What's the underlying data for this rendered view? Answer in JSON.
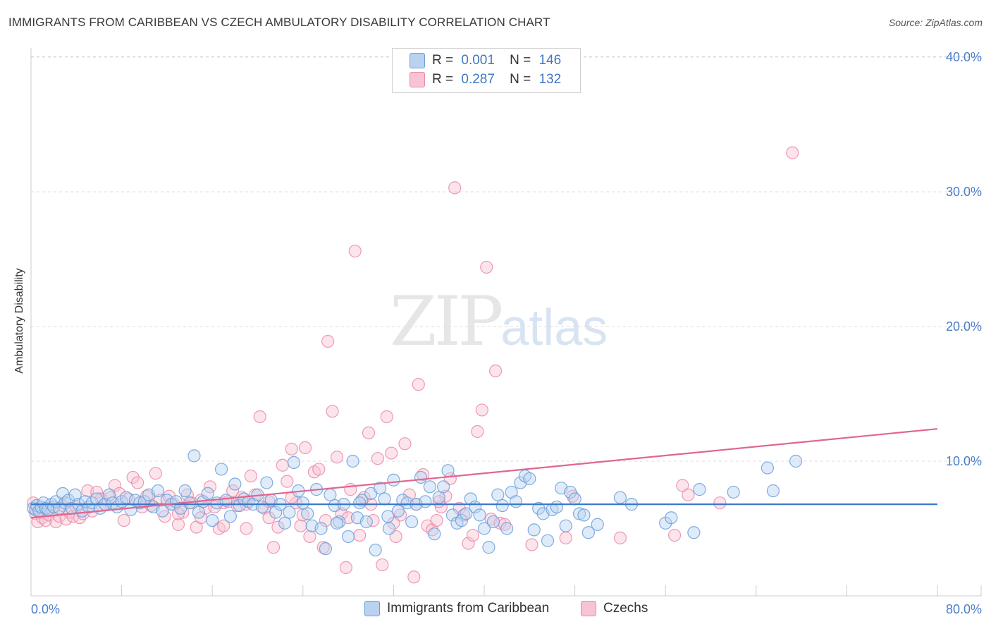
{
  "title": "IMMIGRANTS FROM CARIBBEAN VS CZECH AMBULATORY DISABILITY CORRELATION CHART",
  "source": "Source: ZipAtlas.com",
  "watermark": {
    "zip": "ZIP",
    "atlas": "atlas"
  },
  "legend": {
    "r_label": "R =",
    "n_label": "N =",
    "series": [
      {
        "r": "0.001",
        "n": "146"
      },
      {
        "r": "0.287",
        "n": "132"
      }
    ]
  },
  "colors": {
    "caribbean_fill": "#b9d2f0",
    "caribbean_stroke": "#6a9fdc",
    "caribbean_line": "#3b78c9",
    "czech_fill": "#f8c3d3",
    "czech_stroke": "#ea8aa9",
    "czech_line": "#e06690",
    "tick": "#4a7ec9",
    "grid": "#dddddd"
  },
  "chart_data": {
    "type": "scatter",
    "title": "IMMIGRANTS FROM CARIBBEAN VS CZECH AMBULATORY DISABILITY CORRELATION CHART",
    "xlabel": "",
    "ylabel": "Ambulatory Disability",
    "xlim": [
      0,
      80
    ],
    "ylim": [
      0,
      40
    ],
    "x_tick_labels": [
      "0.0%",
      "80.0%"
    ],
    "y_tick_labels": [
      "10.0%",
      "20.0%",
      "30.0%",
      "40.0%"
    ],
    "y_ticks": [
      10,
      20,
      30,
      40
    ],
    "x_minor_ticks": [
      0,
      8,
      16,
      24,
      32,
      40,
      48,
      56,
      64,
      72,
      80
    ],
    "legend_position": "bottom-center",
    "series": [
      {
        "name": "Immigrants from Caribbean",
        "trend": [
          [
            0,
            6.8
          ],
          [
            80,
            6.8
          ]
        ],
        "points": [
          [
            0.2,
            6.5
          ],
          [
            0.4,
            6.4
          ],
          [
            0.5,
            6.7
          ],
          [
            0.7,
            6.3
          ],
          [
            0.9,
            6.6
          ],
          [
            1.1,
            6.9
          ],
          [
            1.3,
            6.5
          ],
          [
            1.5,
            6.4
          ],
          [
            1.8,
            6.8
          ],
          [
            2.0,
            6.6
          ],
          [
            2.2,
            7.0
          ],
          [
            2.5,
            6.5
          ],
          [
            2.8,
            7.6
          ],
          [
            3.0,
            6.9
          ],
          [
            3.3,
            7.1
          ],
          [
            3.6,
            6.5
          ],
          [
            3.9,
            7.5
          ],
          [
            4.2,
            6.8
          ],
          [
            4.5,
            6.3
          ],
          [
            4.8,
            7.0
          ],
          [
            5.1,
            6.6
          ],
          [
            5.4,
            6.9
          ],
          [
            5.8,
            7.2
          ],
          [
            6.1,
            6.5
          ],
          [
            6.5,
            6.8
          ],
          [
            6.9,
            7.5
          ],
          [
            7.2,
            6.9
          ],
          [
            7.6,
            6.6
          ],
          [
            8.0,
            7.0
          ],
          [
            8.4,
            7.3
          ],
          [
            8.8,
            6.4
          ],
          [
            9.2,
            7.1
          ],
          [
            9.6,
            6.9
          ],
          [
            10.0,
            7.0
          ],
          [
            10.4,
            7.5
          ],
          [
            10.8,
            6.6
          ],
          [
            11.2,
            7.8
          ],
          [
            11.6,
            6.3
          ],
          [
            12.0,
            7.1
          ],
          [
            12.4,
            6.8
          ],
          [
            12.8,
            7.0
          ],
          [
            13.2,
            6.5
          ],
          [
            13.6,
            7.8
          ],
          [
            14.0,
            6.9
          ],
          [
            14.4,
            10.4
          ],
          [
            14.8,
            6.2
          ],
          [
            15.2,
            7.0
          ],
          [
            15.6,
            7.6
          ],
          [
            16.0,
            5.6
          ],
          [
            16.4,
            6.9
          ],
          [
            16.8,
            9.4
          ],
          [
            17.2,
            7.1
          ],
          [
            17.6,
            5.9
          ],
          [
            18.0,
            8.3
          ],
          [
            18.4,
            6.7
          ],
          [
            18.8,
            7.2
          ],
          [
            19.2,
            7.0
          ],
          [
            19.6,
            6.8
          ],
          [
            20.0,
            7.5
          ],
          [
            20.4,
            6.6
          ],
          [
            20.8,
            8.4
          ],
          [
            21.2,
            7.1
          ],
          [
            21.6,
            6.2
          ],
          [
            22.0,
            6.8
          ],
          [
            22.4,
            5.4
          ],
          [
            22.8,
            6.2
          ],
          [
            23.2,
            9.9
          ],
          [
            23.6,
            7.8
          ],
          [
            24.0,
            6.9
          ],
          [
            24.4,
            6.1
          ],
          [
            24.8,
            5.2
          ],
          [
            25.2,
            7.9
          ],
          [
            25.6,
            5.0
          ],
          [
            26.0,
            3.5
          ],
          [
            26.4,
            7.5
          ],
          [
            26.8,
            6.7
          ],
          [
            27.2,
            5.5
          ],
          [
            27.6,
            6.8
          ],
          [
            28.0,
            4.4
          ],
          [
            28.4,
            10.0
          ],
          [
            28.8,
            5.8
          ],
          [
            29.2,
            7.1
          ],
          [
            29.6,
            5.5
          ],
          [
            30.0,
            7.6
          ],
          [
            30.4,
            3.4
          ],
          [
            30.8,
            8.0
          ],
          [
            31.2,
            7.2
          ],
          [
            31.6,
            5.0
          ],
          [
            32.0,
            8.6
          ],
          [
            32.4,
            6.3
          ],
          [
            32.8,
            7.1
          ],
          [
            33.2,
            6.9
          ],
          [
            33.6,
            5.5
          ],
          [
            34.0,
            6.8
          ],
          [
            34.4,
            8.8
          ],
          [
            34.8,
            7.0
          ],
          [
            35.2,
            8.1
          ],
          [
            35.6,
            4.6
          ],
          [
            36.0,
            7.3
          ],
          [
            36.4,
            8.1
          ],
          [
            36.8,
            9.3
          ],
          [
            37.2,
            6.0
          ],
          [
            37.6,
            5.4
          ],
          [
            38.0,
            5.6
          ],
          [
            38.4,
            6.1
          ],
          [
            38.8,
            7.2
          ],
          [
            39.2,
            6.6
          ],
          [
            39.6,
            6.0
          ],
          [
            40.0,
            5.0
          ],
          [
            40.4,
            3.6
          ],
          [
            40.8,
            5.5
          ],
          [
            41.2,
            7.5
          ],
          [
            41.6,
            6.7
          ],
          [
            42.0,
            5.0
          ],
          [
            42.4,
            7.7
          ],
          [
            42.8,
            7.0
          ],
          [
            43.2,
            8.4
          ],
          [
            43.6,
            8.9
          ],
          [
            44.0,
            8.7
          ],
          [
            44.4,
            4.9
          ],
          [
            44.8,
            6.5
          ],
          [
            45.2,
            6.1
          ],
          [
            45.6,
            4.1
          ],
          [
            46.0,
            6.4
          ],
          [
            46.4,
            6.6
          ],
          [
            46.8,
            8.0
          ],
          [
            47.2,
            5.2
          ],
          [
            47.6,
            7.7
          ],
          [
            48.0,
            7.2
          ],
          [
            48.4,
            6.1
          ],
          [
            48.8,
            6.0
          ],
          [
            49.2,
            4.7
          ],
          [
            50.0,
            5.3
          ],
          [
            52.0,
            7.3
          ],
          [
            53.0,
            6.8
          ],
          [
            56.0,
            5.4
          ],
          [
            56.5,
            5.8
          ],
          [
            58.5,
            4.7
          ],
          [
            59.0,
            7.9
          ],
          [
            62.0,
            7.7
          ],
          [
            65.0,
            9.5
          ],
          [
            65.5,
            7.8
          ],
          [
            67.5,
            10.0
          ],
          [
            29.0,
            6.9
          ],
          [
            31.5,
            5.9
          ],
          [
            27.0,
            5.4
          ]
        ]
      },
      {
        "name": "Czechs",
        "trend": [
          [
            0,
            5.8
          ],
          [
            80,
            12.4
          ]
        ],
        "points": [
          [
            0.2,
            6.9
          ],
          [
            0.4,
            6.1
          ],
          [
            0.6,
            5.5
          ],
          [
            0.8,
            6.2
          ],
          [
            1.0,
            5.8
          ],
          [
            1.3,
            5.6
          ],
          [
            1.6,
            6.0
          ],
          [
            1.9,
            6.4
          ],
          [
            2.2,
            5.5
          ],
          [
            2.5,
            5.9
          ],
          [
            2.8,
            6.7
          ],
          [
            3.1,
            5.7
          ],
          [
            3.4,
            6.2
          ],
          [
            3.7,
            5.9
          ],
          [
            4.0,
            6.6
          ],
          [
            4.3,
            5.8
          ],
          [
            4.6,
            6.1
          ],
          [
            5.0,
            7.8
          ],
          [
            5.4,
            6.3
          ],
          [
            5.8,
            7.7
          ],
          [
            6.2,
            7.2
          ],
          [
            6.6,
            6.8
          ],
          [
            7.0,
            7.3
          ],
          [
            7.4,
            8.2
          ],
          [
            7.8,
            7.6
          ],
          [
            8.2,
            5.6
          ],
          [
            8.6,
            7.2
          ],
          [
            9.0,
            8.8
          ],
          [
            9.4,
            8.4
          ],
          [
            9.8,
            6.6
          ],
          [
            10.2,
            7.4
          ],
          [
            10.6,
            6.7
          ],
          [
            11.0,
            9.1
          ],
          [
            11.4,
            7.1
          ],
          [
            11.8,
            5.9
          ],
          [
            12.2,
            7.4
          ],
          [
            12.6,
            6.8
          ],
          [
            13.0,
            5.3
          ],
          [
            13.4,
            6.2
          ],
          [
            13.8,
            7.5
          ],
          [
            14.2,
            6.9
          ],
          [
            14.6,
            5.1
          ],
          [
            15.0,
            7.1
          ],
          [
            15.4,
            6.5
          ],
          [
            15.8,
            8.1
          ],
          [
            16.2,
            6.6
          ],
          [
            16.6,
            5.0
          ],
          [
            17.0,
            6.9
          ],
          [
            17.4,
            7.0
          ],
          [
            17.8,
            7.8
          ],
          [
            18.2,
            6.7
          ],
          [
            18.6,
            7.3
          ],
          [
            19.0,
            6.8
          ],
          [
            19.4,
            8.9
          ],
          [
            19.8,
            7.5
          ],
          [
            20.2,
            13.3
          ],
          [
            20.6,
            6.5
          ],
          [
            21.0,
            5.8
          ],
          [
            21.4,
            3.6
          ],
          [
            21.8,
            5.1
          ],
          [
            22.2,
            9.7
          ],
          [
            22.6,
            8.5
          ],
          [
            23.0,
            10.9
          ],
          [
            23.4,
            6.9
          ],
          [
            23.8,
            5.2
          ],
          [
            24.2,
            11.0
          ],
          [
            24.6,
            4.4
          ],
          [
            25.0,
            9.2
          ],
          [
            25.4,
            9.4
          ],
          [
            25.8,
            3.6
          ],
          [
            26.2,
            18.9
          ],
          [
            26.6,
            13.7
          ],
          [
            27.0,
            10.3
          ],
          [
            27.4,
            6.1
          ],
          [
            27.8,
            2.1
          ],
          [
            28.2,
            7.9
          ],
          [
            28.6,
            25.6
          ],
          [
            29.0,
            4.5
          ],
          [
            29.4,
            7.3
          ],
          [
            29.8,
            12.1
          ],
          [
            30.2,
            5.6
          ],
          [
            30.6,
            10.2
          ],
          [
            31.0,
            2.3
          ],
          [
            31.4,
            13.3
          ],
          [
            31.8,
            10.6
          ],
          [
            32.2,
            4.4
          ],
          [
            32.6,
            6.0
          ],
          [
            33.0,
            11.3
          ],
          [
            33.4,
            7.5
          ],
          [
            33.8,
            1.4
          ],
          [
            34.2,
            15.7
          ],
          [
            34.6,
            9.0
          ],
          [
            35.0,
            5.2
          ],
          [
            35.4,
            4.9
          ],
          [
            35.8,
            5.6
          ],
          [
            36.2,
            6.6
          ],
          [
            36.6,
            7.4
          ],
          [
            37.0,
            8.7
          ],
          [
            37.4,
            30.3
          ],
          [
            37.8,
            6.5
          ],
          [
            38.2,
            6.0
          ],
          [
            38.6,
            3.9
          ],
          [
            39.0,
            4.5
          ],
          [
            39.4,
            12.2
          ],
          [
            39.8,
            13.8
          ],
          [
            40.2,
            24.4
          ],
          [
            40.6,
            5.7
          ],
          [
            41.0,
            16.7
          ],
          [
            41.4,
            5.4
          ],
          [
            41.8,
            5.3
          ],
          [
            44.2,
            3.8
          ],
          [
            47.2,
            4.3
          ],
          [
            47.8,
            7.4
          ],
          [
            52.0,
            4.3
          ],
          [
            56.8,
            4.5
          ],
          [
            57.5,
            8.2
          ],
          [
            58.0,
            7.5
          ],
          [
            60.8,
            6.9
          ],
          [
            67.2,
            32.9
          ],
          [
            24.0,
            6.0
          ],
          [
            26.0,
            5.6
          ],
          [
            28.0,
            5.8
          ],
          [
            30.0,
            6.8
          ],
          [
            32.0,
            5.4
          ],
          [
            34.0,
            6.8
          ],
          [
            36.0,
            7.0
          ],
          [
            23.0,
            7.3
          ],
          [
            21.0,
            7.0
          ],
          [
            19.0,
            5.0
          ],
          [
            17.0,
            5.2
          ],
          [
            15.0,
            5.8
          ],
          [
            13.0,
            6.1
          ]
        ]
      }
    ]
  },
  "bottom_legend": [
    "Immigrants from Caribbean",
    "Czechs"
  ]
}
